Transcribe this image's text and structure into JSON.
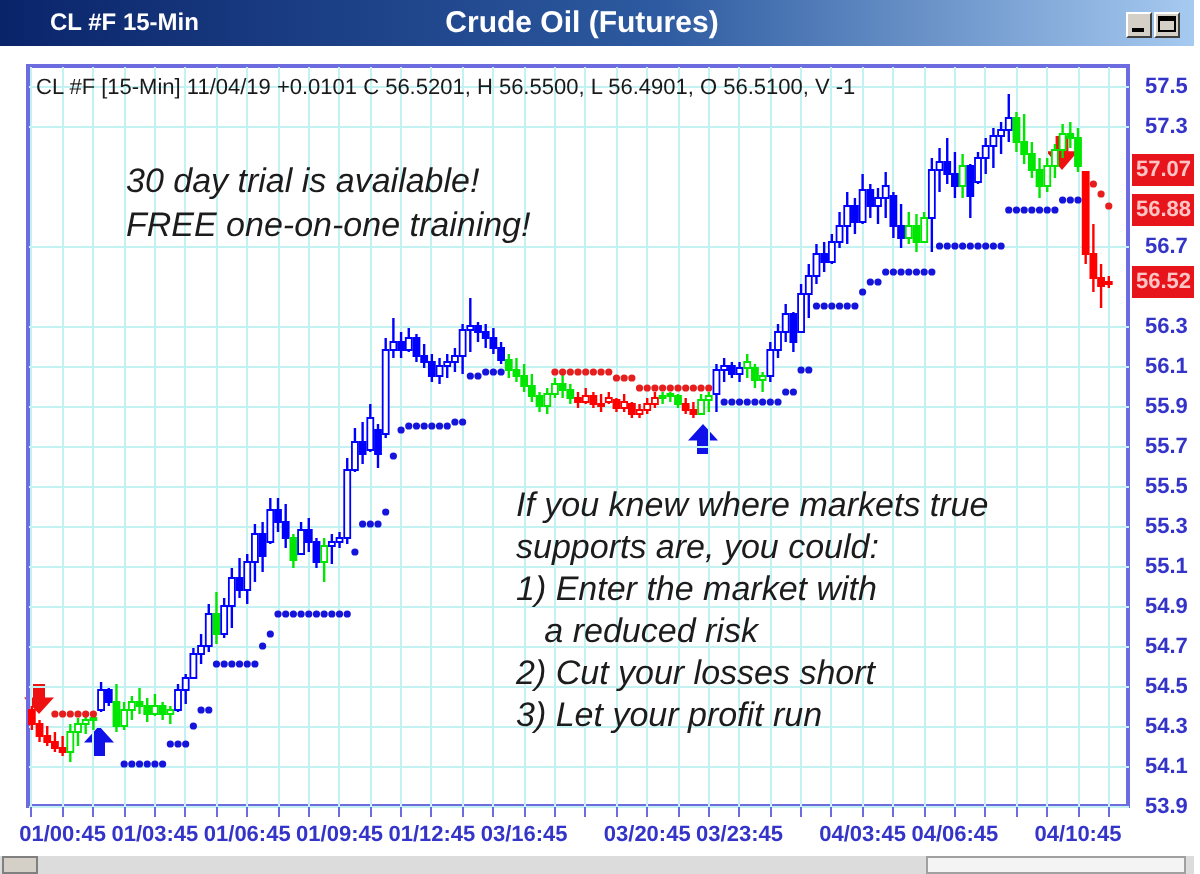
{
  "chart_data": {
    "type": "candlestick",
    "title": "Crude Oil (Futures)",
    "subtitle": "CL #F [15-Min] 11/04/19 +0.0101 C 56.5201, H 56.5500, L 56.4901, O 56.5100, V -1",
    "annotations": [
      "CL #F 15-Min",
      "30 day trial is available!\nFREE one-on-one training!",
      "If you knew where markets true\nsupports are, you could:\n1) Enter the market with\n   a reduced risk\n2) Cut your losses short\n3) Let your profit run",
      "57.07",
      "56.88",
      "56.52"
    ],
    "categories": [
      null,
      null,
      null,
      null,
      "01/00:45",
      null,
      null,
      null,
      null,
      null,
      null,
      null,
      null,
      null,
      null,
      null,
      "01/03:45",
      null,
      null,
      null,
      null,
      null,
      null,
      null,
      null,
      null,
      null,
      null,
      "01/06:45",
      null,
      null,
      null,
      null,
      null,
      null,
      null,
      null,
      null,
      null,
      null,
      "01/09:45",
      null,
      null,
      null,
      null,
      null,
      null,
      null,
      null,
      null,
      null,
      null,
      "01/12:45",
      null,
      null,
      null,
      null,
      null,
      null,
      null,
      null,
      null,
      null,
      null,
      "03/16:45",
      null,
      null,
      null,
      null,
      null,
      null,
      null,
      null,
      null,
      null,
      null,
      null,
      null,
      null,
      null,
      "03/20:45",
      null,
      null,
      null,
      null,
      null,
      null,
      null,
      null,
      null,
      null,
      null,
      "03/23:45",
      null,
      null,
      null,
      null,
      null,
      null,
      null,
      null,
      null,
      null,
      null,
      null,
      null,
      null,
      null,
      "04/03:45",
      null,
      null,
      null,
      null,
      null,
      null,
      null,
      null,
      null,
      null,
      null,
      "04/06:45",
      null,
      null,
      null,
      null,
      null,
      null,
      null,
      null,
      null,
      null,
      null,
      null,
      null,
      null,
      null,
      "04/10:45",
      null,
      null,
      null,
      null
    ],
    "ohlc": [
      [
        54.38,
        54.4,
        54.28,
        54.31
      ],
      [
        54.31,
        54.33,
        54.22,
        54.25
      ],
      [
        54.25,
        54.3,
        54.2,
        54.22
      ],
      [
        54.22,
        54.27,
        54.17,
        54.19
      ],
      [
        54.19,
        54.25,
        54.15,
        54.17
      ],
      [
        54.17,
        54.31,
        54.12,
        54.27
      ],
      [
        54.27,
        54.34,
        54.2,
        54.31
      ],
      [
        54.31,
        54.35,
        54.26,
        54.33
      ],
      [
        54.33,
        54.35,
        54.28,
        54.34
      ],
      [
        54.38,
        54.52,
        54.37,
        54.48
      ],
      [
        54.48,
        54.49,
        54.4,
        54.42
      ],
      [
        54.42,
        54.51,
        54.27,
        54.3
      ],
      [
        54.3,
        54.42,
        54.28,
        54.38
      ],
      [
        54.38,
        54.45,
        54.33,
        54.42
      ],
      [
        54.42,
        54.49,
        54.36,
        54.4
      ],
      [
        54.4,
        54.44,
        54.32,
        54.36
      ],
      [
        54.36,
        54.46,
        54.35,
        54.4
      ],
      [
        54.4,
        54.42,
        54.33,
        54.36
      ],
      [
        54.36,
        54.4,
        54.31,
        54.38
      ],
      [
        54.38,
        54.51,
        54.37,
        54.48
      ],
      [
        54.48,
        54.56,
        54.41,
        54.54
      ],
      [
        54.54,
        54.69,
        54.54,
        54.66
      ],
      [
        54.66,
        54.76,
        54.61,
        54.7
      ],
      [
        54.7,
        54.91,
        54.67,
        54.86
      ],
      [
        54.86,
        54.97,
        54.71,
        54.76
      ],
      [
        54.76,
        54.94,
        54.74,
        54.9
      ],
      [
        54.9,
        55.09,
        54.79,
        55.04
      ],
      [
        55.04,
        55.14,
        54.94,
        54.98
      ],
      [
        54.98,
        55.16,
        54.91,
        55.12
      ],
      [
        55.12,
        55.31,
        55.02,
        55.26
      ],
      [
        55.26,
        55.32,
        55.07,
        55.15
      ],
      [
        55.22,
        55.44,
        55.21,
        55.38
      ],
      [
        55.38,
        55.44,
        55.27,
        55.32
      ],
      [
        55.32,
        55.41,
        55.19,
        55.24
      ],
      [
        55.24,
        55.26,
        55.09,
        55.13
      ],
      [
        55.16,
        55.32,
        55.16,
        55.28
      ],
      [
        55.28,
        55.34,
        55.17,
        55.22
      ],
      [
        55.22,
        55.24,
        55.09,
        55.12
      ],
      [
        55.12,
        55.24,
        55.02,
        55.2
      ],
      [
        55.2,
        55.26,
        55.11,
        55.22
      ],
      [
        55.22,
        55.27,
        55.19,
        55.24
      ],
      [
        55.24,
        55.64,
        55.21,
        55.58
      ],
      [
        55.58,
        55.79,
        55.57,
        55.72
      ],
      [
        55.72,
        55.82,
        55.61,
        55.66
      ],
      [
        55.68,
        55.91,
        55.67,
        55.84
      ],
      [
        55.78,
        55.81,
        55.59,
        55.66
      ],
      [
        55.76,
        56.24,
        55.74,
        56.18
      ],
      [
        56.18,
        56.34,
        56.14,
        56.22
      ],
      [
        56.22,
        56.27,
        56.14,
        56.18
      ],
      [
        56.18,
        56.29,
        56.17,
        56.24
      ],
      [
        56.24,
        56.26,
        56.12,
        56.15
      ],
      [
        56.15,
        56.21,
        56.09,
        56.12
      ],
      [
        56.12,
        56.16,
        56.02,
        56.05
      ],
      [
        56.05,
        56.14,
        56.01,
        56.1
      ],
      [
        56.1,
        56.16,
        56.04,
        56.12
      ],
      [
        56.12,
        56.19,
        56.07,
        56.15
      ],
      [
        56.15,
        56.31,
        56.06,
        56.28
      ],
      [
        56.28,
        56.44,
        56.17,
        56.3
      ],
      [
        56.3,
        56.32,
        56.22,
        56.27
      ],
      [
        56.27,
        56.31,
        56.19,
        56.24
      ],
      [
        56.24,
        56.29,
        56.16,
        56.19
      ],
      [
        56.19,
        56.22,
        56.11,
        56.13
      ],
      [
        56.13,
        56.16,
        56.04,
        56.08
      ],
      [
        56.08,
        56.14,
        56.02,
        56.05
      ],
      [
        56.05,
        56.11,
        55.97,
        56.0
      ],
      [
        56.0,
        56.06,
        55.92,
        55.95
      ],
      [
        55.95,
        55.97,
        55.87,
        55.9
      ],
      [
        55.9,
        55.99,
        55.86,
        55.96
      ],
      [
        55.96,
        56.04,
        55.94,
        56.01
      ],
      [
        56.01,
        56.06,
        55.94,
        55.98
      ],
      [
        55.98,
        56.01,
        55.91,
        55.94
      ],
      [
        55.94,
        55.97,
        55.89,
        55.92
      ],
      [
        55.92,
        55.99,
        55.91,
        55.95
      ],
      [
        55.95,
        55.97,
        55.89,
        55.91
      ],
      [
        55.91,
        55.96,
        55.87,
        55.9
      ],
      [
        55.92,
        55.97,
        55.91,
        55.94
      ],
      [
        55.93,
        55.94,
        55.87,
        55.89
      ],
      [
        55.89,
        55.96,
        55.87,
        55.92
      ],
      [
        55.91,
        55.92,
        55.84,
        55.86
      ],
      [
        55.86,
        55.91,
        55.84,
        55.88
      ],
      [
        55.88,
        55.94,
        55.86,
        55.91
      ],
      [
        55.91,
        55.97,
        55.89,
        55.94
      ],
      [
        55.94,
        55.97,
        55.91,
        55.95
      ],
      [
        55.95,
        55.97,
        55.92,
        55.96
      ],
      [
        55.95,
        55.96,
        55.89,
        55.91
      ],
      [
        55.91,
        55.94,
        55.86,
        55.88
      ],
      [
        55.88,
        55.92,
        55.84,
        55.86
      ],
      [
        55.86,
        55.96,
        55.86,
        55.93
      ],
      [
        55.93,
        55.97,
        55.87,
        55.95
      ],
      [
        55.96,
        56.11,
        55.87,
        56.08
      ],
      [
        56.08,
        56.14,
        56.02,
        56.1
      ],
      [
        56.1,
        56.12,
        56.04,
        56.06
      ],
      [
        56.06,
        56.12,
        56.02,
        56.09
      ],
      [
        56.09,
        56.16,
        56.04,
        56.12
      ],
      [
        56.09,
        56.11,
        55.99,
        56.03
      ],
      [
        56.03,
        56.07,
        55.97,
        56.05
      ],
      [
        56.05,
        56.22,
        56.02,
        56.18
      ],
      [
        56.18,
        56.31,
        56.14,
        56.27
      ],
      [
        56.27,
        56.41,
        56.22,
        56.36
      ],
      [
        56.36,
        56.37,
        56.17,
        56.22
      ],
      [
        56.27,
        56.51,
        56.27,
        56.46
      ],
      [
        56.46,
        56.61,
        56.34,
        56.55
      ],
      [
        56.55,
        56.71,
        56.51,
        56.66
      ],
      [
        56.66,
        56.72,
        56.57,
        56.62
      ],
      [
        56.62,
        56.76,
        56.61,
        56.72
      ],
      [
        56.72,
        56.87,
        56.69,
        56.8
      ],
      [
        56.8,
        56.97,
        56.71,
        56.9
      ],
      [
        56.9,
        56.94,
        56.76,
        56.82
      ],
      [
        56.82,
        57.06,
        56.81,
        56.98
      ],
      [
        56.98,
        57.01,
        56.84,
        56.9
      ],
      [
        56.9,
        56.99,
        56.81,
        56.94
      ],
      [
        56.94,
        57.07,
        56.84,
        57.0
      ],
      [
        56.95,
        56.97,
        56.74,
        56.8
      ],
      [
        56.8,
        56.91,
        56.69,
        56.74
      ],
      [
        56.74,
        56.87,
        56.71,
        56.8
      ],
      [
        56.8,
        56.86,
        56.67,
        56.72
      ],
      [
        56.72,
        56.87,
        56.72,
        56.84
      ],
      [
        56.84,
        57.14,
        56.67,
        57.08
      ],
      [
        57.08,
        57.19,
        56.97,
        57.12
      ],
      [
        57.12,
        57.24,
        57.01,
        57.06
      ],
      [
        57.06,
        57.17,
        56.94,
        57.0
      ],
      [
        57.0,
        57.16,
        56.94,
        57.1
      ],
      [
        57.1,
        57.11,
        56.84,
        56.95
      ],
      [
        57.02,
        57.17,
        57.01,
        57.14
      ],
      [
        57.14,
        57.24,
        57.06,
        57.2
      ],
      [
        57.2,
        57.29,
        57.09,
        57.25
      ],
      [
        57.25,
        57.32,
        57.16,
        57.28
      ],
      [
        57.28,
        57.46,
        57.22,
        57.34
      ],
      [
        57.34,
        57.37,
        57.17,
        57.22
      ],
      [
        57.22,
        57.36,
        57.11,
        57.16
      ],
      [
        57.16,
        57.22,
        57.04,
        57.08
      ],
      [
        57.08,
        57.14,
        56.94,
        57.0
      ],
      [
        57.0,
        57.14,
        56.97,
        57.1
      ],
      [
        57.1,
        57.21,
        57.04,
        57.18
      ],
      [
        57.18,
        57.31,
        57.14,
        57.26
      ],
      [
        57.26,
        57.32,
        57.19,
        57.24
      ],
      [
        57.24,
        57.29,
        57.07,
        57.1
      ],
      [
        57.07,
        57.07,
        56.61,
        56.66
      ],
      [
        56.66,
        56.81,
        56.47,
        56.54
      ],
      [
        56.54,
        56.61,
        56.39,
        56.5
      ],
      [
        56.51,
        56.55,
        56.49,
        56.52
      ]
    ],
    "colors": [
      "#ff0000",
      "#ff0000",
      "#ff0000",
      "#ff0000",
      "#ff0000",
      "#00e600",
      "#00e600",
      "#00e600",
      "#00e600",
      "#0000ff",
      "#0000ff",
      "#00e600",
      "#00e600",
      "#00e600",
      "#00e600",
      "#00e600",
      "#00e600",
      "#00e600",
      "#00e600",
      "#0000ff",
      "#0000ff",
      "#0000ff",
      "#0000ff",
      "#0000ff",
      "#00e600",
      "#0000ff",
      "#0000ff",
      "#0000ff",
      "#0000ff",
      "#0000ff",
      "#0000ff",
      "#0000ff",
      "#0000ff",
      "#0000ff",
      "#00e600",
      "#0000ff",
      "#0000ff",
      "#0000ff",
      "#00e600",
      "#0000ff",
      "#0000ff",
      "#0000ff",
      "#0000ff",
      "#0000ff",
      "#0000ff",
      "#0000ff",
      "#0000ff",
      "#0000ff",
      "#0000ff",
      "#0000ff",
      "#0000ff",
      "#0000ff",
      "#0000ff",
      "#0000ff",
      "#0000ff",
      "#0000ff",
      "#0000ff",
      "#0000ff",
      "#0000ff",
      "#0000ff",
      "#0000ff",
      "#0000ff",
      "#00e600",
      "#00e600",
      "#00e600",
      "#00e600",
      "#00e600",
      "#00e600",
      "#00e600",
      "#00e600",
      "#00e600",
      "#ff0000",
      "#ff0000",
      "#ff0000",
      "#ff0000",
      "#ff0000",
      "#ff0000",
      "#ff0000",
      "#ff0000",
      "#ff0000",
      "#ff0000",
      "#ff0000",
      "#00e600",
      "#00e600",
      "#00e600",
      "#ff0000",
      "#ff0000",
      "#00e600",
      "#00e600",
      "#0000ff",
      "#0000ff",
      "#0000ff",
      "#0000ff",
      "#00e600",
      "#00e600",
      "#00e600",
      "#0000ff",
      "#0000ff",
      "#0000ff",
      "#0000ff",
      "#0000ff",
      "#0000ff",
      "#0000ff",
      "#0000ff",
      "#0000ff",
      "#0000ff",
      "#0000ff",
      "#0000ff",
      "#0000ff",
      "#0000ff",
      "#0000ff",
      "#0000ff",
      "#0000ff",
      "#0000ff",
      "#00e600",
      "#00e600",
      "#00e600",
      "#0000ff",
      "#0000ff",
      "#0000ff",
      "#0000ff",
      "#00e600",
      "#0000ff",
      "#0000ff",
      "#0000ff",
      "#0000ff",
      "#0000ff",
      "#0000ff",
      "#00e600",
      "#00e600",
      "#00e600",
      "#00e600",
      "#00e600",
      "#00e600",
      "#00e600",
      "#00e600",
      "#00e600",
      "#ff0000",
      "#ff0000",
      "#ff0000",
      "#ff0000"
    ],
    "series": [
      {
        "type": "scatter",
        "color": "#1414dc",
        "values": [
          null,
          null,
          null,
          null,
          null,
          null,
          null,
          null,
          null,
          null,
          null,
          null,
          54.11,
          54.11,
          54.11,
          54.11,
          54.11,
          54.11,
          54.21,
          54.21,
          54.21,
          54.3,
          54.38,
          54.38,
          54.61,
          54.61,
          54.61,
          54.61,
          54.61,
          54.61,
          54.7,
          54.76,
          54.86,
          54.86,
          54.86,
          54.86,
          54.86,
          54.86,
          54.86,
          54.86,
          54.86,
          54.86,
          55.17,
          55.31,
          55.31,
          55.31,
          55.37,
          55.65,
          55.78,
          55.8,
          55.8,
          55.8,
          55.8,
          55.8,
          55.8,
          55.82,
          55.82,
          56.05,
          56.05,
          56.07,
          56.07,
          56.07,
          null,
          null,
          null,
          null,
          null,
          null,
          null,
          null,
          null,
          null,
          null,
          null,
          null,
          null,
          null,
          null,
          null,
          null,
          null,
          null,
          null,
          null,
          null,
          null,
          null,
          null,
          null,
          null,
          55.92,
          55.92,
          55.92,
          55.92,
          55.92,
          55.92,
          55.92,
          55.92,
          55.97,
          55.97,
          56.08,
          56.08,
          56.4,
          56.4,
          56.4,
          56.4,
          56.4,
          56.4,
          56.47,
          56.52,
          56.52,
          56.57,
          56.57,
          56.57,
          56.57,
          56.57,
          56.57,
          56.57,
          56.7,
          56.7,
          56.7,
          56.7,
          56.7,
          56.7,
          56.7,
          56.7,
          56.7,
          56.88,
          56.88,
          56.88,
          56.88,
          56.88,
          56.88,
          56.88,
          56.93,
          56.93,
          56.93,
          null,
          null,
          null,
          null
        ]
      },
      {
        "type": "scatter",
        "color": "#e61e1e",
        "values": [
          null,
          null,
          null,
          54.36,
          54.36,
          54.36,
          54.36,
          54.36,
          54.36,
          null,
          null,
          null,
          null,
          null,
          null,
          null,
          null,
          null,
          null,
          null,
          null,
          null,
          null,
          null,
          null,
          null,
          null,
          null,
          null,
          null,
          null,
          null,
          null,
          null,
          null,
          null,
          null,
          null,
          null,
          null,
          null,
          null,
          null,
          null,
          null,
          null,
          null,
          null,
          null,
          null,
          null,
          null,
          null,
          null,
          null,
          null,
          null,
          null,
          null,
          null,
          null,
          null,
          null,
          null,
          null,
          null,
          null,
          null,
          56.07,
          56.07,
          56.07,
          56.07,
          56.07,
          56.07,
          56.07,
          56.07,
          56.04,
          56.04,
          56.04,
          55.99,
          55.99,
          55.99,
          55.99,
          55.99,
          55.99,
          55.99,
          55.99,
          55.99,
          55.99,
          null,
          null,
          null,
          null,
          null,
          null,
          null,
          null,
          null,
          null,
          null,
          null,
          null,
          null,
          null,
          null,
          null,
          null,
          null,
          null,
          null,
          null,
          null,
          null,
          null,
          null,
          null,
          null,
          null,
          null,
          null,
          null,
          null,
          null,
          null,
          null,
          null,
          null,
          null,
          null,
          null,
          null,
          null,
          null,
          null,
          null,
          null,
          null,
          null,
          57.01,
          56.96,
          56.9
        ]
      }
    ],
    "ylim": [
      53.9,
      57.6
    ],
    "yticks": [
      53.9,
      54.1,
      54.3,
      54.5,
      54.7,
      54.9,
      55.1,
      55.3,
      55.5,
      55.7,
      55.9,
      56.1,
      56.3,
      56.7,
      57.3,
      57.5
    ],
    "grid": true,
    "marker": "circle"
  }
}
